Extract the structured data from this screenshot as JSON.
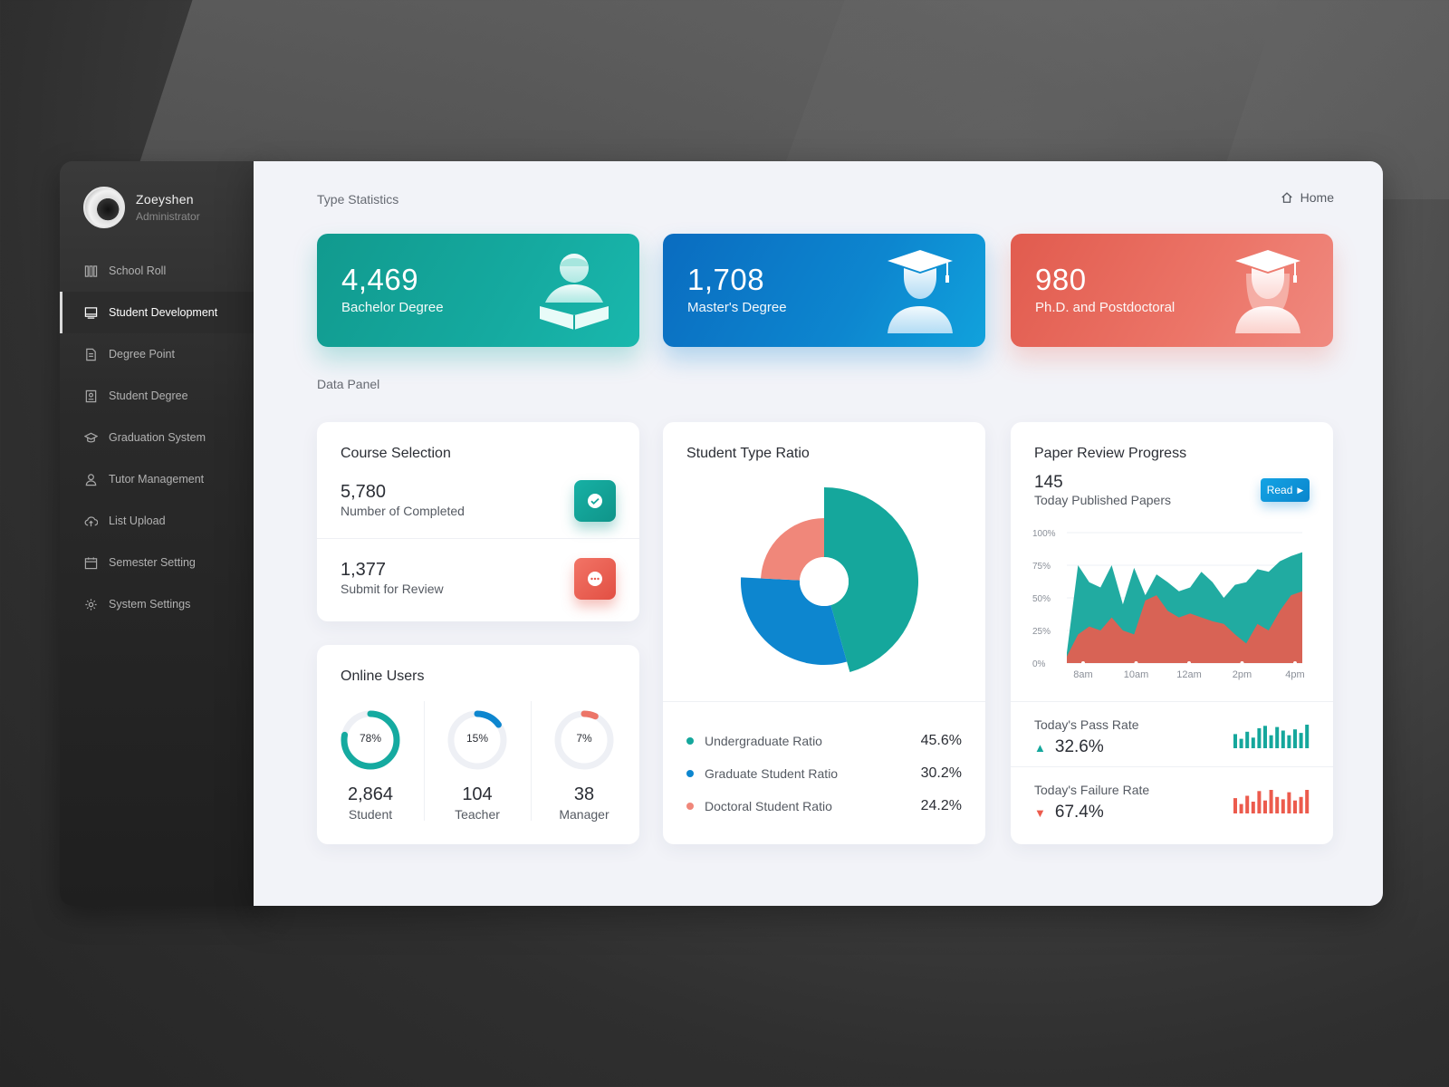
{
  "profile": {
    "name": "Zoeyshen",
    "role": "Administrator"
  },
  "sidebar": {
    "items": [
      {
        "label": "School Roll",
        "icon": "books-icon",
        "active": false
      },
      {
        "label": "Student Development",
        "icon": "monitor-icon",
        "active": true
      },
      {
        "label": "Degree Point",
        "icon": "document-icon",
        "active": false
      },
      {
        "label": "Student Degree",
        "icon": "id-card-icon",
        "active": false
      },
      {
        "label": "Graduation System",
        "icon": "graduation-cap-icon",
        "active": false
      },
      {
        "label": "Tutor Management",
        "icon": "user-icon",
        "active": false
      },
      {
        "label": "List Upload",
        "icon": "cloud-upload-icon",
        "active": false
      },
      {
        "label": "Semester Setting",
        "icon": "calendar-icon",
        "active": false
      },
      {
        "label": "System Settings",
        "icon": "gear-icon",
        "active": false
      }
    ]
  },
  "header": {
    "type_statistics": "Type Statistics",
    "home": "Home",
    "data_panel": "Data Panel"
  },
  "stats": [
    {
      "value": "4,469",
      "label": "Bachelor Degree",
      "color": "#15aaa0",
      "icon": "student-reading-icon"
    },
    {
      "value": "1,708",
      "label": "Master's Degree",
      "color": "#0d86cf",
      "icon": "graduate-icon"
    },
    {
      "value": "980",
      "label": "Ph.D. and Postdoctoral",
      "color": "#ec7568",
      "icon": "graduate-female-icon"
    }
  ],
  "course_selection": {
    "title": "Course Selection",
    "rows": [
      {
        "value": "5,780",
        "label": "Number of Completed",
        "icon": "check-icon",
        "color": "#15a79c"
      },
      {
        "value": "1,377",
        "label": "Submit for Review",
        "icon": "more-icon",
        "color": "#e9574b"
      }
    ]
  },
  "online_users": {
    "title": "Online Users",
    "groups": [
      {
        "percent": "78%",
        "value": "2,864",
        "label": "Student",
        "fraction": 0.78,
        "color": "#15aaa0"
      },
      {
        "percent": "15%",
        "value": "104",
        "label": "Teacher",
        "fraction": 0.15,
        "color": "#0d86cf"
      },
      {
        "percent": "7%",
        "value": "38",
        "label": "Manager",
        "fraction": 0.07,
        "color": "#ec7568"
      }
    ]
  },
  "student_type_ratio": {
    "title": "Student Type Ratio",
    "legend": [
      {
        "label": "Undergraduate Ratio",
        "value": "45.6%",
        "color": "#15a79c"
      },
      {
        "label": "Graduate Student Ratio",
        "value": "30.2%",
        "color": "#0d86cf"
      },
      {
        "label": "Doctoral Student Ratio",
        "value": "24.2%",
        "color": "#f0877a"
      }
    ]
  },
  "paper_review": {
    "title": "Paper Review Progress",
    "value": "145",
    "label": "Today Published Papers",
    "read_label": "Read",
    "pass_label": "Today's Pass Rate",
    "pass_value": "32.6%",
    "fail_label": "Today's Failure Rate",
    "fail_value": "67.4%"
  },
  "chart_data": [
    {
      "type": "pie",
      "name": "Student Type Ratio",
      "categories": [
        "Undergraduate Ratio",
        "Graduate Student Ratio",
        "Doctoral Student Ratio"
      ],
      "values": [
        45.6,
        30.2,
        24.2
      ],
      "colors": [
        "#15a79c",
        "#0d86cf",
        "#f0877a"
      ]
    },
    {
      "type": "area",
      "title": "Paper Review Progress",
      "x_ticks": [
        "8am",
        "10am",
        "12am",
        "2pm",
        "4pm"
      ],
      "y_ticks": [
        "100%",
        "75%",
        "50%",
        "25%",
        "0%"
      ],
      "ylim": [
        0,
        100
      ],
      "series": [
        {
          "color": "#15a79c",
          "values": [
            8,
            75,
            62,
            58,
            75,
            45,
            73,
            52,
            68,
            62,
            55,
            58,
            70,
            62,
            50,
            60,
            62,
            72,
            70,
            78,
            82,
            85
          ]
        },
        {
          "color": "#ec5b4d",
          "values": [
            5,
            22,
            28,
            25,
            35,
            25,
            22,
            48,
            52,
            40,
            35,
            38,
            35,
            32,
            30,
            22,
            15,
            30,
            25,
            40,
            52,
            55
          ]
        }
      ]
    },
    {
      "type": "bar",
      "title": "Today's Pass Rate",
      "values": [
        60,
        40,
        70,
        45,
        85,
        95,
        55,
        90,
        75,
        55,
        80,
        65,
        100
      ],
      "color": "#15a79c"
    },
    {
      "type": "bar",
      "title": "Today's Failure Rate",
      "values": [
        65,
        40,
        75,
        50,
        95,
        55,
        100,
        70,
        60,
        90,
        55,
        70,
        100
      ],
      "color": "#ec5b4d"
    }
  ]
}
